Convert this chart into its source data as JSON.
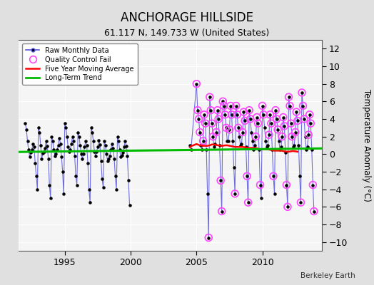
{
  "title": "ANCHORAGE HILLSIDE",
  "subtitle": "61.117 N, 149.733 W (United States)",
  "ylabel": "Temperature Anomaly (°C)",
  "attribution": "Berkeley Earth",
  "xlim": [
    1991.5,
    2014.5
  ],
  "ylim": [
    -11,
    13
  ],
  "yticks": [
    -10,
    -8,
    -6,
    -4,
    -2,
    0,
    2,
    4,
    6,
    8,
    10,
    12
  ],
  "xticks": [
    1995,
    2000,
    2005,
    2010
  ],
  "fig_bg_color": "#e0e0e0",
  "plot_bg_color": "#f5f5f5",
  "grid_color": "#ffffff",
  "raw_line_color": "#5555dd",
  "raw_marker_color": "#000000",
  "qc_fail_color": "#ff44ff",
  "moving_avg_color": "#ff0000",
  "trend_color": "#00bb00",
  "raw_segments": [
    [
      [
        1992.0,
        3.5
      ],
      [
        1992.083,
        2.8
      ],
      [
        1992.167,
        1.5
      ],
      [
        1992.25,
        0.5
      ],
      [
        1992.333,
        -0.3
      ],
      [
        1992.417,
        0.2
      ],
      [
        1992.5,
        0.5
      ],
      [
        1992.583,
        1.2
      ],
      [
        1992.667,
        0.8
      ],
      [
        1992.75,
        -1.0
      ],
      [
        1992.833,
        -2.5
      ],
      [
        1992.917,
        -4.0
      ],
      [
        1993.0,
        3.0
      ],
      [
        1993.083,
        2.5
      ],
      [
        1993.167,
        1.0
      ],
      [
        1993.25,
        -0.5
      ],
      [
        1993.333,
        0.1
      ],
      [
        1993.417,
        0.3
      ],
      [
        1993.5,
        0.7
      ],
      [
        1993.583,
        1.5
      ],
      [
        1993.667,
        0.9
      ],
      [
        1993.75,
        -0.5
      ],
      [
        1993.833,
        -3.5
      ],
      [
        1993.917,
        -5.0
      ],
      [
        1994.0,
        2.0
      ],
      [
        1994.083,
        1.5
      ],
      [
        1994.167,
        0.5
      ],
      [
        1994.25,
        -0.2
      ],
      [
        1994.333,
        0.0
      ],
      [
        1994.417,
        0.5
      ],
      [
        1994.5,
        1.0
      ],
      [
        1994.583,
        1.8
      ],
      [
        1994.667,
        1.2
      ],
      [
        1994.75,
        -0.3
      ],
      [
        1994.833,
        -2.0
      ],
      [
        1994.917,
        -4.5
      ],
      [
        1995.0,
        3.5
      ],
      [
        1995.083,
        3.0
      ],
      [
        1995.167,
        2.0
      ],
      [
        1995.25,
        0.8
      ],
      [
        1995.333,
        0.3
      ],
      [
        1995.417,
        0.5
      ],
      [
        1995.5,
        1.2
      ],
      [
        1995.583,
        2.0
      ],
      [
        1995.667,
        1.5
      ],
      [
        1995.75,
        -0.2
      ],
      [
        1995.833,
        -2.5
      ],
      [
        1995.917,
        -3.5
      ],
      [
        1996.0,
        2.5
      ],
      [
        1996.083,
        2.0
      ],
      [
        1996.167,
        1.0
      ],
      [
        1996.25,
        0.0
      ],
      [
        1996.333,
        -0.5
      ],
      [
        1996.417,
        0.0
      ],
      [
        1996.5,
        0.8
      ],
      [
        1996.583,
        1.5
      ],
      [
        1996.667,
        1.0
      ],
      [
        1996.75,
        -1.0
      ],
      [
        1996.833,
        -4.0
      ],
      [
        1996.917,
        -5.5
      ],
      [
        1997.0,
        3.0
      ],
      [
        1997.083,
        2.5
      ],
      [
        1997.167,
        1.5
      ],
      [
        1997.25,
        0.3
      ],
      [
        1997.333,
        -0.2
      ],
      [
        1997.417,
        0.3
      ],
      [
        1997.5,
        0.8
      ],
      [
        1997.583,
        1.6
      ],
      [
        1997.667,
        1.1
      ],
      [
        1997.75,
        -0.8
      ],
      [
        1997.833,
        -2.8
      ],
      [
        1997.917,
        -3.8
      ],
      [
        1998.0,
        1.5
      ],
      [
        1998.083,
        1.0
      ],
      [
        1998.167,
        0.0
      ],
      [
        1998.25,
        -0.8
      ],
      [
        1998.333,
        -0.5
      ],
      [
        1998.417,
        -0.2
      ],
      [
        1998.5,
        0.5
      ],
      [
        1998.583,
        1.2
      ],
      [
        1998.667,
        0.7
      ],
      [
        1998.75,
        -0.5
      ],
      [
        1998.833,
        -2.5
      ],
      [
        1998.917,
        -4.0
      ],
      [
        1999.0,
        2.0
      ],
      [
        1999.083,
        1.5
      ],
      [
        1999.167,
        0.5
      ],
      [
        1999.25,
        -0.3
      ],
      [
        1999.333,
        -0.1
      ],
      [
        1999.417,
        0.2
      ],
      [
        1999.5,
        0.8
      ],
      [
        1999.583,
        1.5
      ],
      [
        1999.667,
        0.9
      ],
      [
        1999.75,
        -0.2
      ],
      [
        1999.833,
        -3.0
      ],
      [
        1999.917,
        -5.8
      ]
    ],
    [
      [
        2004.5,
        1.0
      ],
      [
        2004.583,
        0.5
      ],
      [
        2005.0,
        8.0
      ],
      [
        2005.083,
        5.0
      ],
      [
        2005.167,
        4.0
      ],
      [
        2005.25,
        2.5
      ],
      [
        2005.333,
        1.0
      ],
      [
        2005.417,
        0.5
      ],
      [
        2005.5,
        1.5
      ],
      [
        2005.583,
        4.5
      ],
      [
        2005.667,
        3.5
      ],
      [
        2005.75,
        0.5
      ],
      [
        2005.833,
        -4.5
      ],
      [
        2005.917,
        -9.5
      ],
      [
        2006.0,
        6.5
      ],
      [
        2006.083,
        5.0
      ],
      [
        2006.167,
        3.5
      ],
      [
        2006.25,
        2.0
      ],
      [
        2006.333,
        0.8
      ],
      [
        2006.417,
        1.2
      ],
      [
        2006.5,
        2.5
      ],
      [
        2006.583,
        5.0
      ],
      [
        2006.667,
        4.0
      ],
      [
        2006.75,
        1.0
      ],
      [
        2006.833,
        -3.0
      ],
      [
        2006.917,
        -6.5
      ],
      [
        2007.0,
        6.0
      ],
      [
        2007.083,
        5.5
      ],
      [
        2007.167,
        4.5
      ],
      [
        2007.25,
        3.0
      ],
      [
        2007.333,
        1.5
      ],
      [
        2007.417,
        1.5
      ],
      [
        2007.5,
        2.8
      ],
      [
        2007.583,
        5.5
      ],
      [
        2007.667,
        4.5
      ],
      [
        2007.75,
        1.5
      ],
      [
        2007.833,
        -1.5
      ],
      [
        2007.917,
        -4.5
      ],
      [
        2008.0,
        5.5
      ],
      [
        2008.083,
        4.5
      ],
      [
        2008.167,
        3.0
      ],
      [
        2008.25,
        2.0
      ],
      [
        2008.333,
        1.0
      ],
      [
        2008.417,
        1.2
      ],
      [
        2008.5,
        2.5
      ],
      [
        2008.583,
        4.8
      ],
      [
        2008.667,
        3.8
      ],
      [
        2008.75,
        0.8
      ],
      [
        2008.833,
        -2.5
      ],
      [
        2008.917,
        -5.5
      ],
      [
        2009.0,
        5.0
      ],
      [
        2009.083,
        4.0
      ],
      [
        2009.167,
        2.5
      ],
      [
        2009.25,
        1.5
      ],
      [
        2009.333,
        0.5
      ],
      [
        2009.417,
        1.0
      ],
      [
        2009.5,
        2.0
      ],
      [
        2009.583,
        4.2
      ],
      [
        2009.667,
        3.5
      ],
      [
        2009.75,
        0.5
      ],
      [
        2009.833,
        -3.5
      ],
      [
        2009.917,
        -5.0
      ],
      [
        2010.0,
        5.5
      ],
      [
        2010.083,
        4.5
      ],
      [
        2010.167,
        3.0
      ],
      [
        2010.25,
        1.5
      ],
      [
        2010.333,
        0.8
      ],
      [
        2010.417,
        1.0
      ],
      [
        2010.5,
        2.2
      ],
      [
        2010.583,
        4.5
      ],
      [
        2010.667,
        3.5
      ],
      [
        2010.75,
        0.5
      ],
      [
        2010.833,
        -2.5
      ],
      [
        2010.917,
        -4.5
      ],
      [
        2011.0,
        5.0
      ],
      [
        2011.083,
        4.0
      ],
      [
        2011.167,
        2.8
      ],
      [
        2011.25,
        1.5
      ],
      [
        2011.333,
        0.5
      ],
      [
        2011.417,
        0.8
      ],
      [
        2011.5,
        2.0
      ],
      [
        2011.583,
        4.2
      ],
      [
        2011.667,
        3.2
      ],
      [
        2011.75,
        0.2
      ],
      [
        2011.833,
        -3.5
      ],
      [
        2011.917,
        -6.0
      ],
      [
        2012.0,
        6.5
      ],
      [
        2012.083,
        5.5
      ],
      [
        2012.167,
        3.5
      ],
      [
        2012.25,
        2.0
      ],
      [
        2012.333,
        0.8
      ],
      [
        2012.417,
        1.0
      ],
      [
        2012.5,
        2.5
      ],
      [
        2012.583,
        4.8
      ],
      [
        2012.667,
        3.8
      ],
      [
        2012.75,
        1.0
      ],
      [
        2012.833,
        -2.5
      ],
      [
        2012.917,
        -5.5
      ],
      [
        2013.0,
        7.0
      ],
      [
        2013.083,
        5.5
      ],
      [
        2013.167,
        4.0
      ],
      [
        2013.25,
        2.0
      ],
      [
        2013.333,
        0.5
      ],
      [
        2013.417,
        0.8
      ],
      [
        2013.5,
        2.2
      ],
      [
        2013.583,
        4.5
      ],
      [
        2013.667,
        3.5
      ],
      [
        2013.75,
        0.5
      ],
      [
        2013.833,
        -3.5
      ],
      [
        2013.917,
        -6.5
      ]
    ]
  ],
  "qc_fail_points": [
    [
      2005.0,
      8.0
    ],
    [
      2005.083,
      5.0
    ],
    [
      2005.167,
      4.0
    ],
    [
      2005.25,
      2.5
    ],
    [
      2005.5,
      1.5
    ],
    [
      2005.583,
      4.5
    ],
    [
      2005.667,
      3.5
    ],
    [
      2005.917,
      -9.5
    ],
    [
      2006.0,
      6.5
    ],
    [
      2006.083,
      5.0
    ],
    [
      2006.167,
      3.5
    ],
    [
      2006.25,
      2.0
    ],
    [
      2006.5,
      2.5
    ],
    [
      2006.583,
      5.0
    ],
    [
      2006.667,
      4.0
    ],
    [
      2006.833,
      -3.0
    ],
    [
      2006.917,
      -6.5
    ],
    [
      2007.0,
      6.0
    ],
    [
      2007.083,
      5.5
    ],
    [
      2007.167,
      4.5
    ],
    [
      2007.25,
      3.0
    ],
    [
      2007.5,
      2.8
    ],
    [
      2007.583,
      5.5
    ],
    [
      2007.667,
      4.5
    ],
    [
      2007.917,
      -4.5
    ],
    [
      2008.0,
      5.5
    ],
    [
      2008.083,
      4.5
    ],
    [
      2008.167,
      3.0
    ],
    [
      2008.5,
      2.5
    ],
    [
      2008.583,
      4.8
    ],
    [
      2008.667,
      3.8
    ],
    [
      2008.833,
      -2.5
    ],
    [
      2008.917,
      -5.5
    ],
    [
      2009.0,
      5.0
    ],
    [
      2009.083,
      4.0
    ],
    [
      2009.5,
      2.0
    ],
    [
      2009.583,
      4.2
    ],
    [
      2009.667,
      3.5
    ],
    [
      2009.833,
      -3.5
    ],
    [
      2010.0,
      5.5
    ],
    [
      2010.083,
      4.5
    ],
    [
      2010.5,
      2.2
    ],
    [
      2010.583,
      4.5
    ],
    [
      2010.667,
      3.5
    ],
    [
      2010.833,
      -2.5
    ],
    [
      2011.0,
      5.0
    ],
    [
      2011.083,
      4.0
    ],
    [
      2011.167,
      2.8
    ],
    [
      2011.5,
      2.0
    ],
    [
      2011.583,
      4.2
    ],
    [
      2011.667,
      3.2
    ],
    [
      2011.833,
      -3.5
    ],
    [
      2011.917,
      -6.0
    ],
    [
      2012.0,
      6.5
    ],
    [
      2012.083,
      5.5
    ],
    [
      2012.167,
      3.5
    ],
    [
      2012.25,
      2.0
    ],
    [
      2012.5,
      2.5
    ],
    [
      2012.583,
      4.8
    ],
    [
      2012.667,
      3.8
    ],
    [
      2012.917,
      -5.5
    ],
    [
      2013.0,
      7.0
    ],
    [
      2013.083,
      5.5
    ],
    [
      2013.167,
      4.0
    ],
    [
      2013.5,
      2.2
    ],
    [
      2013.583,
      4.5
    ],
    [
      2013.667,
      3.5
    ],
    [
      2013.833,
      -3.5
    ],
    [
      2013.917,
      -6.5
    ]
  ],
  "moving_avg": [
    [
      2004.5,
      0.8
    ],
    [
      2004.583,
      0.9
    ],
    [
      2004.667,
      0.95
    ],
    [
      2004.75,
      1.0
    ],
    [
      2004.833,
      1.05
    ],
    [
      2004.917,
      1.1
    ],
    [
      2005.0,
      1.15
    ],
    [
      2005.083,
      1.1
    ],
    [
      2005.167,
      1.05
    ],
    [
      2005.25,
      1.0
    ],
    [
      2005.333,
      1.0
    ],
    [
      2005.417,
      0.98
    ],
    [
      2005.5,
      0.95
    ],
    [
      2005.583,
      0.95
    ],
    [
      2005.667,
      0.95
    ],
    [
      2005.75,
      0.95
    ],
    [
      2005.833,
      0.95
    ],
    [
      2005.917,
      0.98
    ],
    [
      2006.0,
      1.0
    ],
    [
      2006.083,
      1.05
    ],
    [
      2006.167,
      1.1
    ],
    [
      2006.25,
      1.1
    ],
    [
      2006.333,
      1.1
    ],
    [
      2006.417,
      1.08
    ],
    [
      2006.5,
      1.05
    ],
    [
      2006.583,
      1.02
    ],
    [
      2006.667,
      1.0
    ],
    [
      2006.75,
      0.98
    ],
    [
      2006.833,
      0.95
    ],
    [
      2006.917,
      0.95
    ],
    [
      2007.0,
      0.95
    ],
    [
      2007.083,
      0.98
    ],
    [
      2007.167,
      1.0
    ],
    [
      2007.25,
      1.0
    ],
    [
      2007.333,
      1.0
    ],
    [
      2007.417,
      0.98
    ],
    [
      2007.5,
      0.95
    ],
    [
      2007.583,
      0.92
    ],
    [
      2007.667,
      0.9
    ],
    [
      2007.75,
      0.88
    ],
    [
      2007.833,
      0.85
    ],
    [
      2007.917,
      0.82
    ],
    [
      2008.0,
      0.82
    ],
    [
      2008.083,
      0.82
    ],
    [
      2008.167,
      0.82
    ],
    [
      2008.25,
      0.82
    ],
    [
      2008.333,
      0.82
    ],
    [
      2008.417,
      0.82
    ],
    [
      2008.5,
      0.82
    ],
    [
      2008.583,
      0.8
    ],
    [
      2008.667,
      0.78
    ],
    [
      2008.75,
      0.75
    ],
    [
      2008.833,
      0.72
    ],
    [
      2008.917,
      0.7
    ],
    [
      2009.0,
      0.7
    ],
    [
      2009.083,
      0.7
    ],
    [
      2009.167,
      0.7
    ],
    [
      2009.25,
      0.7
    ],
    [
      2009.333,
      0.7
    ],
    [
      2009.417,
      0.7
    ],
    [
      2009.5,
      0.68
    ],
    [
      2009.583,
      0.65
    ],
    [
      2009.667,
      0.62
    ],
    [
      2009.75,
      0.6
    ],
    [
      2009.833,
      0.58
    ],
    [
      2009.917,
      0.55
    ],
    [
      2010.0,
      0.55
    ],
    [
      2010.083,
      0.55
    ],
    [
      2010.167,
      0.55
    ],
    [
      2010.25,
      0.55
    ],
    [
      2010.333,
      0.55
    ],
    [
      2010.417,
      0.55
    ],
    [
      2010.5,
      0.52
    ],
    [
      2010.583,
      0.5
    ],
    [
      2010.667,
      0.48
    ],
    [
      2010.75,
      0.45
    ],
    [
      2010.833,
      0.42
    ],
    [
      2010.917,
      0.4
    ],
    [
      2011.0,
      0.4
    ],
    [
      2011.083,
      0.4
    ],
    [
      2011.167,
      0.4
    ],
    [
      2011.25,
      0.4
    ],
    [
      2011.333,
      0.4
    ],
    [
      2011.417,
      0.4
    ],
    [
      2011.5,
      0.38
    ],
    [
      2011.583,
      0.35
    ],
    [
      2011.667,
      0.32
    ],
    [
      2011.75,
      0.3
    ],
    [
      2011.833,
      0.28
    ],
    [
      2011.917,
      0.28
    ],
    [
      2012.0,
      0.28
    ],
    [
      2012.083,
      0.3
    ],
    [
      2012.167,
      0.32
    ],
    [
      2012.25,
      0.35
    ],
    [
      2012.333,
      0.35
    ],
    [
      2012.5,
      0.32
    ],
    [
      2012.583,
      0.3
    ],
    [
      2012.667,
      0.28
    ]
  ],
  "trend_x": [
    1991.5,
    2014.5
  ],
  "trend_y": [
    0.25,
    0.65
  ]
}
